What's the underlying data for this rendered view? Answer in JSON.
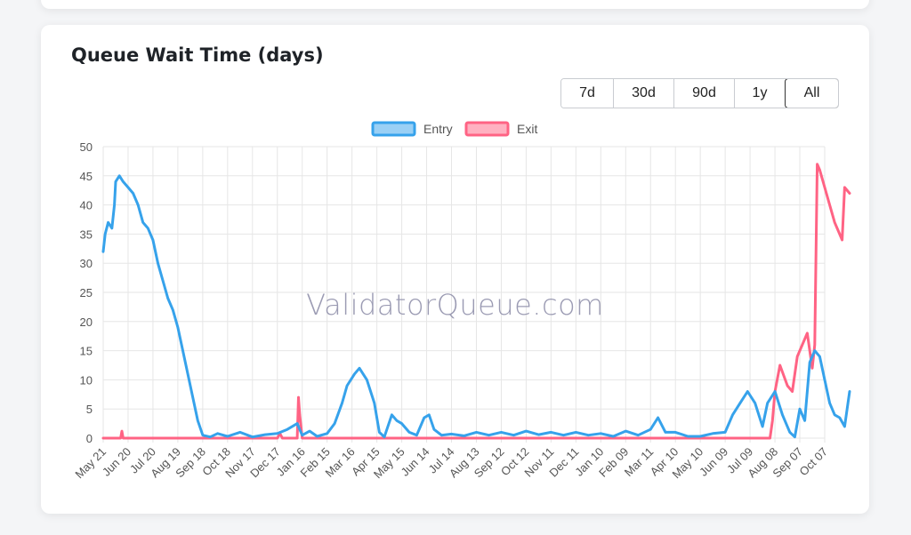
{
  "card": {
    "title": "Queue Wait Time (days)"
  },
  "ranges": [
    {
      "label": "7d",
      "active": false
    },
    {
      "label": "30d",
      "active": false
    },
    {
      "label": "90d",
      "active": false
    },
    {
      "label": "1y",
      "active": false
    },
    {
      "label": "All",
      "active": true
    }
  ],
  "watermark": "ValidatorQueue.com",
  "colors": {
    "entry": "#36a2eb",
    "exit": "#ff6384",
    "entry_fill": "#9ad0f5",
    "exit_fill": "#ffb1c1"
  },
  "chart_data": {
    "type": "line",
    "ylabel": "",
    "xlabel": "",
    "ylim": [
      0,
      50
    ],
    "yticks": [
      0,
      5,
      10,
      15,
      20,
      25,
      30,
      35,
      40,
      45,
      50
    ],
    "xtick_labels": [
      "May 21",
      "Jun 20",
      "Jul 20",
      "Aug 19",
      "Sep 18",
      "Oct 18",
      "Nov 17",
      "Dec 17",
      "Jan 16",
      "Feb 15",
      "Mar 16",
      "Apr 15",
      "May 15",
      "Jun 14",
      "Jul 14",
      "Aug 13",
      "Sep 12",
      "Oct 12",
      "Nov 11",
      "Dec 11",
      "Jan 10",
      "Feb 09",
      "Mar 11",
      "Apr 10",
      "May 10",
      "Jun 09",
      "Jul 09",
      "Aug 08",
      "Sep 07",
      "Oct 07"
    ],
    "legend": {
      "position": "top"
    },
    "series": [
      {
        "name": "Entry",
        "points": [
          [
            0,
            32
          ],
          [
            0.08,
            35
          ],
          [
            0.2,
            37
          ],
          [
            0.35,
            36
          ],
          [
            0.45,
            40
          ],
          [
            0.5,
            44
          ],
          [
            0.65,
            45
          ],
          [
            0.8,
            44
          ],
          [
            1.0,
            43
          ],
          [
            1.2,
            42
          ],
          [
            1.4,
            40
          ],
          [
            1.6,
            37
          ],
          [
            1.8,
            36
          ],
          [
            2.0,
            34
          ],
          [
            2.2,
            30
          ],
          [
            2.4,
            27
          ],
          [
            2.6,
            24
          ],
          [
            2.8,
            22
          ],
          [
            3.0,
            19
          ],
          [
            3.2,
            15
          ],
          [
            3.4,
            11
          ],
          [
            3.6,
            7
          ],
          [
            3.8,
            3
          ],
          [
            4.0,
            0.5
          ],
          [
            4.3,
            0.2
          ],
          [
            4.6,
            0.8
          ],
          [
            5.0,
            0.3
          ],
          [
            5.5,
            1.0
          ],
          [
            6.0,
            0.2
          ],
          [
            6.5,
            0.6
          ],
          [
            7.0,
            0.8
          ],
          [
            7.4,
            1.5
          ],
          [
            7.8,
            2.5
          ],
          [
            8.0,
            0.5
          ],
          [
            8.3,
            1.2
          ],
          [
            8.6,
            0.3
          ],
          [
            9.0,
            0.8
          ],
          [
            9.3,
            2.5
          ],
          [
            9.6,
            6
          ],
          [
            9.8,
            9
          ],
          [
            10.1,
            11
          ],
          [
            10.3,
            12
          ],
          [
            10.6,
            10
          ],
          [
            10.9,
            6
          ],
          [
            11.1,
            1
          ],
          [
            11.3,
            0.2
          ],
          [
            11.6,
            4
          ],
          [
            11.8,
            3
          ],
          [
            12.0,
            2.5
          ],
          [
            12.3,
            1
          ],
          [
            12.6,
            0.5
          ],
          [
            12.9,
            3.5
          ],
          [
            13.1,
            4
          ],
          [
            13.3,
            1.5
          ],
          [
            13.6,
            0.5
          ],
          [
            14.0,
            0.7
          ],
          [
            14.5,
            0.4
          ],
          [
            15.0,
            1.0
          ],
          [
            15.5,
            0.5
          ],
          [
            16.0,
            1.0
          ],
          [
            16.5,
            0.5
          ],
          [
            17.0,
            1.2
          ],
          [
            17.5,
            0.6
          ],
          [
            18.0,
            1.0
          ],
          [
            18.5,
            0.5
          ],
          [
            19.0,
            1.0
          ],
          [
            19.5,
            0.5
          ],
          [
            20.0,
            0.8
          ],
          [
            20.5,
            0.3
          ],
          [
            21.0,
            1.2
          ],
          [
            21.5,
            0.5
          ],
          [
            22.0,
            1.5
          ],
          [
            22.3,
            3.5
          ],
          [
            22.6,
            1
          ],
          [
            23.0,
            1.0
          ],
          [
            23.5,
            0.3
          ],
          [
            24.0,
            0.3
          ],
          [
            24.5,
            0.8
          ],
          [
            25.0,
            1.0
          ],
          [
            25.3,
            4
          ],
          [
            25.6,
            6
          ],
          [
            25.9,
            8
          ],
          [
            26.2,
            6
          ],
          [
            26.5,
            2
          ],
          [
            26.7,
            6
          ],
          [
            27.0,
            8
          ],
          [
            27.3,
            4
          ],
          [
            27.6,
            1
          ],
          [
            27.8,
            0.2
          ],
          [
            28.0,
            5
          ],
          [
            28.2,
            3
          ],
          [
            28.4,
            13
          ],
          [
            28.6,
            15
          ],
          [
            28.8,
            14
          ],
          [
            29.0,
            10
          ],
          [
            29.2,
            6
          ],
          [
            29.4,
            4
          ],
          [
            29.6,
            3.5
          ],
          [
            29.8,
            2
          ],
          [
            29.9,
            5
          ],
          [
            30.0,
            8
          ]
        ]
      },
      {
        "name": "Exit",
        "points": [
          [
            0,
            0
          ],
          [
            0.7,
            0
          ],
          [
            0.75,
            1.2
          ],
          [
            0.8,
            0
          ],
          [
            7.0,
            0
          ],
          [
            7.1,
            0.8
          ],
          [
            7.2,
            0
          ],
          [
            7.8,
            0
          ],
          [
            7.85,
            7
          ],
          [
            7.9,
            4
          ],
          [
            8.0,
            0
          ],
          [
            26.8,
            0
          ],
          [
            26.9,
            3
          ],
          [
            27.0,
            8
          ],
          [
            27.2,
            12.5
          ],
          [
            27.5,
            9
          ],
          [
            27.7,
            8
          ],
          [
            27.9,
            14
          ],
          [
            28.1,
            16
          ],
          [
            28.3,
            18
          ],
          [
            28.5,
            12
          ],
          [
            28.6,
            16
          ],
          [
            28.7,
            47
          ],
          [
            28.8,
            46
          ],
          [
            29.0,
            43
          ],
          [
            29.2,
            40
          ],
          [
            29.4,
            37
          ],
          [
            29.6,
            35
          ],
          [
            29.7,
            34
          ],
          [
            29.8,
            43
          ],
          [
            30.0,
            42
          ]
        ]
      }
    ]
  }
}
